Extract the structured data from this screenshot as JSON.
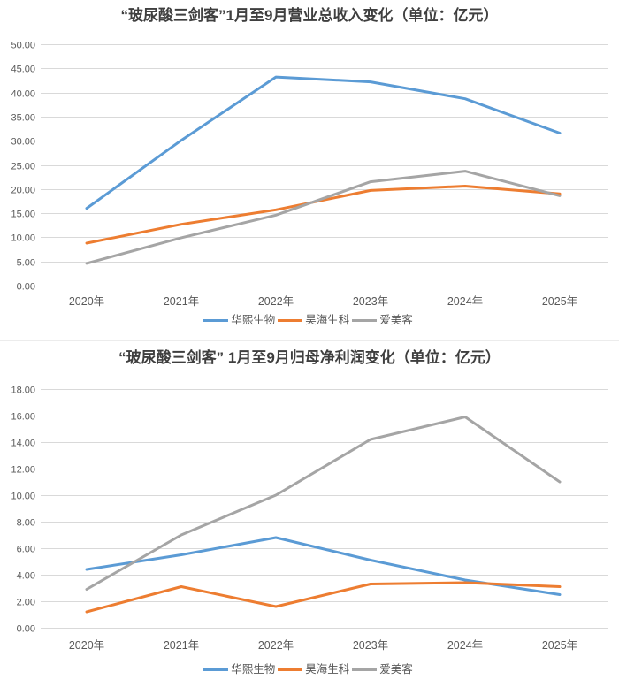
{
  "colors": {
    "series_blue": "#5B9BD5",
    "series_orange": "#ED7D31",
    "series_gray": "#A5A5A5",
    "gridline": "#D9D9D9",
    "axis_text": "#595959",
    "title_text": "#3F3F3F"
  },
  "chart_data": [
    {
      "type": "line",
      "title": "“玻尿酸三剑客”1月至9月营业总收入变化（单位：亿元）",
      "xlabel": "",
      "ylabel": "",
      "categories": [
        "2020年",
        "2021年",
        "2022年",
        "2023年",
        "2024年",
        "2025年"
      ],
      "series": [
        {
          "name": "华熙生物",
          "color": "#5B9BD5",
          "values": [
            16.0,
            30.1,
            43.2,
            42.2,
            38.7,
            31.6
          ]
        },
        {
          "name": "昊海生科",
          "color": "#ED7D31",
          "values": [
            8.8,
            12.7,
            15.7,
            19.7,
            20.6,
            19.0
          ]
        },
        {
          "name": "爱美客",
          "color": "#A5A5A5",
          "values": [
            4.6,
            9.9,
            14.6,
            21.5,
            23.7,
            18.6
          ]
        }
      ],
      "ylim": [
        0,
        50
      ],
      "ytick_step": 5,
      "ytick_format_decimals": 2,
      "grid": true,
      "legend_position": "bottom"
    },
    {
      "type": "line",
      "title": "“玻尿酸三剑客” 1月至9月归母净利润变化（单位：亿元）",
      "xlabel": "",
      "ylabel": "",
      "categories": [
        "2020年",
        "2021年",
        "2022年",
        "2023年",
        "2024年",
        "2025年"
      ],
      "series": [
        {
          "name": "华熙生物",
          "color": "#5B9BD5",
          "values": [
            4.4,
            5.5,
            6.8,
            5.1,
            3.6,
            2.5
          ]
        },
        {
          "name": "昊海生科",
          "color": "#ED7D31",
          "values": [
            1.2,
            3.1,
            1.6,
            3.3,
            3.4,
            3.1
          ]
        },
        {
          "name": "爱美客",
          "color": "#A5A5A5",
          "values": [
            2.9,
            7.0,
            10.0,
            14.2,
            15.9,
            11.0
          ]
        }
      ],
      "ylim": [
        0,
        18
      ],
      "ytick_step": 2,
      "ytick_format_decimals": 2,
      "grid": true,
      "legend_position": "bottom"
    }
  ]
}
